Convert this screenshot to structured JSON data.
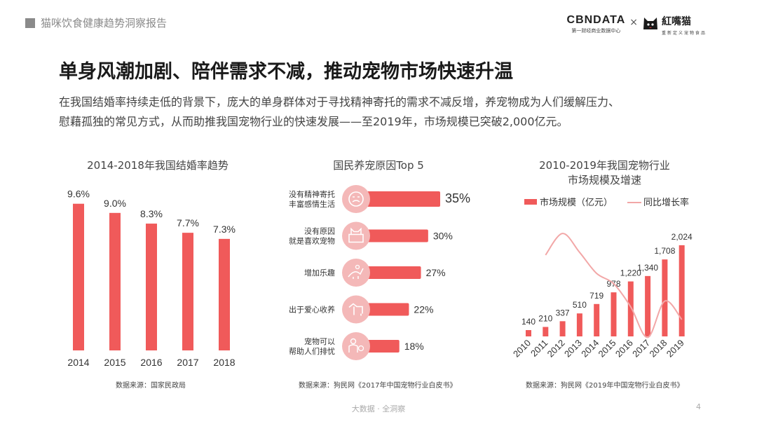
{
  "header": {
    "report_tag": "猫咪饮食健康趋势洞察报告",
    "brand_cbn": "CBNDATA",
    "brand_cbn_sub": "第一财经商业数据中心",
    "logo_x": "×",
    "brand_partner": "紅嘴猫",
    "brand_partner_sub": "重新定义宠物食品"
  },
  "headline": "单身风潮加剧、陪伴需求不减，推动宠物市场快速升温",
  "lead_line1": "在我国结婚率持续走低的背景下，庞大的单身群体对于寻找精神寄托的需求不减反增，养宠物成为人们缓解压力、",
  "lead_line2": "慰藉孤独的常见方式，从而助推我国宠物行业的快速发展——至2019年，市场规模已突破2,000亿元。",
  "colors": {
    "bar_red": "#f05a5a",
    "light_pink": "#f7bcbc",
    "line_pink": "#f2a7a7",
    "bubble": "#f4b8b8"
  },
  "chart_data": [
    {
      "type": "bar",
      "title": "2014-2018年我国结婚率趋势",
      "categories": [
        "2014",
        "2015",
        "2016",
        "2017",
        "2018"
      ],
      "values": [
        9.6,
        9.0,
        8.3,
        7.7,
        7.3
      ],
      "value_labels": [
        "9.6%",
        "9.0%",
        "8.3%",
        "7.7%",
        "7.3%"
      ],
      "ylim": [
        0,
        10.5
      ],
      "source": "数据来源：国家民政局"
    },
    {
      "type": "bar",
      "orientation": "horizontal",
      "title": "国民养宠原因Top 5",
      "categories": [
        "没有精神寄托\n丰富感情生活",
        "没有原因\n就是喜欢宠物",
        "增加乐趣",
        "出于爱心收养",
        "宠物可以\n帮助人们排忧"
      ],
      "values": [
        35,
        30,
        27,
        22,
        18
      ],
      "value_labels": [
        "35%",
        "30%",
        "27%",
        "22%",
        "18%"
      ],
      "icons": [
        "sad-face-icon",
        "cat-in-box-icon",
        "playing-cat-icon",
        "dog-icon",
        "person-with-pet-icon"
      ],
      "xlim": [
        0,
        35
      ],
      "source": "数据来源：狗民网《2017年中国宠物行业白皮书》"
    },
    {
      "type": "bar",
      "title": "2010-2019年我国宠物行业\n市场规模及增速",
      "categories": [
        "2010",
        "2011",
        "2012",
        "2013",
        "2014",
        "2015",
        "2016",
        "2017",
        "2018",
        "2019"
      ],
      "series": [
        {
          "name": "市场规模（亿元）",
          "type": "bar",
          "values": [
            140,
            210,
            337,
            510,
            719,
            978,
            1220,
            1340,
            1708,
            2024
          ]
        },
        {
          "name": "同比增长率",
          "type": "line",
          "values": [
            null,
            50.0,
            60.5,
            51.3,
            41.0,
            36.0,
            24.7,
            9.8,
            27.5,
            18.5
          ]
        }
      ],
      "value_labels": [
        "140",
        "210",
        "337",
        "510",
        "719",
        "978",
        "1,220",
        "1,340",
        "1,708",
        "2,024"
      ],
      "ylim": [
        0,
        2100
      ],
      "source": "数据来源：狗民网《2019年中国宠物行业白皮书》"
    }
  ],
  "footer": {
    "text": "大数据 · 全洞察",
    "page": "4"
  }
}
